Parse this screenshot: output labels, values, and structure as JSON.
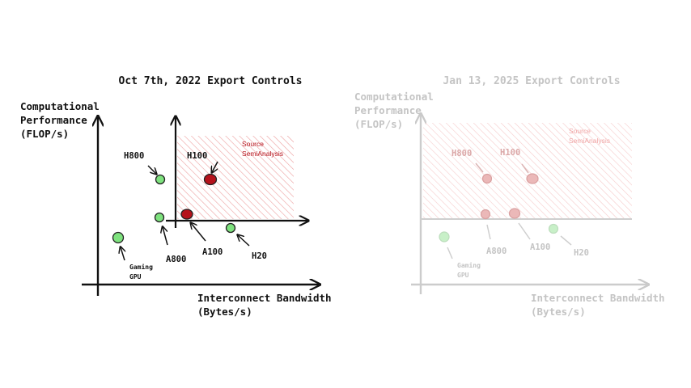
{
  "left": {
    "title": "Oct 7th, 2022 Export Controls",
    "y_label": [
      "Computational",
      "Performance",
      "(FLOP/s)"
    ],
    "x_label": [
      "Interconnect Bandwidth",
      "(Bytes/s)"
    ],
    "source": [
      "Source",
      "SemiAnalysis"
    ],
    "chips": {
      "h800": "H800",
      "h100": "H100",
      "a800": "A800",
      "a100": "A100",
      "h20": "H20",
      "gaming": [
        "Gaming",
        "GPU"
      ]
    }
  },
  "right": {
    "title": "Jan 13, 2025 Export Controls",
    "y_label": [
      "Computational",
      "Performance",
      "(FLOP/s)"
    ],
    "x_label": [
      "Interconnect Bandwidth",
      "(Bytes/s)"
    ],
    "source": [
      "Source",
      "SemiAnalysis"
    ],
    "chips": {
      "h800": "H800",
      "h100": "H100",
      "a800": "A800",
      "a100": "A100",
      "h20": "H20",
      "gaming": [
        "Gaming",
        "GPU"
      ]
    }
  },
  "colors": {
    "ink": "#111111",
    "restricted_red": "#b5121b",
    "hatch": "#e78a8a",
    "allowed_green": "#7ee27e"
  }
}
